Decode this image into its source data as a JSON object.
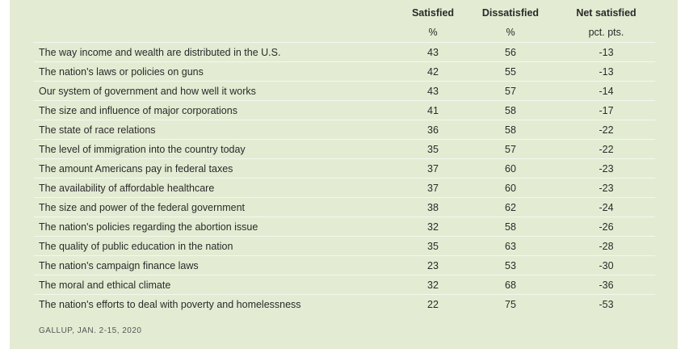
{
  "headers": {
    "satisfied": "Satisfied",
    "dissatisfied": "Dissatisfied",
    "net": "Net satisfied",
    "satisfied_unit": "%",
    "dissatisfied_unit": "%",
    "net_unit": "pct. pts."
  },
  "rows": [
    {
      "label": "The way income and wealth are distributed in the U.S.",
      "satisfied": "43",
      "dissatisfied": "56",
      "net": "-13"
    },
    {
      "label": "The nation's laws or policies on guns",
      "satisfied": "42",
      "dissatisfied": "55",
      "net": "-13"
    },
    {
      "label": "Our system of government and how well it works",
      "satisfied": "43",
      "dissatisfied": "57",
      "net": "-14"
    },
    {
      "label": "The size and influence of major corporations",
      "satisfied": "41",
      "dissatisfied": "58",
      "net": "-17"
    },
    {
      "label": "The state of race relations",
      "satisfied": "36",
      "dissatisfied": "58",
      "net": "-22"
    },
    {
      "label": "The level of immigration into the country today",
      "satisfied": "35",
      "dissatisfied": "57",
      "net": "-22"
    },
    {
      "label": "The amount Americans pay in federal taxes",
      "satisfied": "37",
      "dissatisfied": "60",
      "net": "-23"
    },
    {
      "label": "The availability of affordable healthcare",
      "satisfied": "37",
      "dissatisfied": "60",
      "net": "-23"
    },
    {
      "label": "The size and power of the federal government",
      "satisfied": "38",
      "dissatisfied": "62",
      "net": "-24"
    },
    {
      "label": "The nation's policies regarding the abortion issue",
      "satisfied": "32",
      "dissatisfied": "58",
      "net": "-26"
    },
    {
      "label": "The quality of public education in the nation",
      "satisfied": "35",
      "dissatisfied": "63",
      "net": "-28"
    },
    {
      "label": "The nation's campaign finance laws",
      "satisfied": "23",
      "dissatisfied": "53",
      "net": "-30"
    },
    {
      "label": "The moral and ethical climate",
      "satisfied": "32",
      "dissatisfied": "68",
      "net": "-36"
    },
    {
      "label": "The nation's efforts to deal with poverty and homelessness",
      "satisfied": "22",
      "dissatisfied": "75",
      "net": "-53"
    }
  ],
  "source": "GALLUP, JAN. 2-15, 2020",
  "colors": {
    "panel_background": "#e3ecd3",
    "row_divider": "#f4f7ee"
  }
}
